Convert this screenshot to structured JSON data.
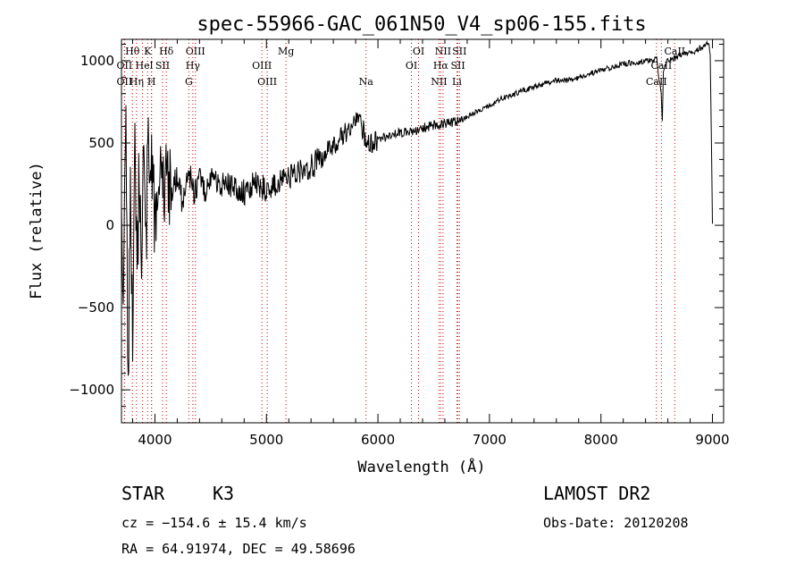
{
  "chart_data": {
    "type": "line",
    "title": "spec-55966-GAC_061N50_V4_sp06-155.fits",
    "xlabel": "Wavelength (Å)",
    "ylabel": "Flux (relative)",
    "xlim": [
      3700,
      9100
    ],
    "ylim": [
      -1200,
      1130
    ],
    "xticks": [
      4000,
      5000,
      6000,
      7000,
      8000,
      9000
    ],
    "xtick_labels": [
      "4000",
      "5000",
      "6000",
      "7000",
      "8000",
      "9000"
    ],
    "yticks": [
      -1000,
      -500,
      0,
      500,
      1000
    ],
    "ytick_labels": [
      "−1000",
      "−500",
      "0",
      "500",
      "1000"
    ],
    "grid": false,
    "legend": "none",
    "series": [
      {
        "x": [
          3700,
          3720,
          3740,
          3760,
          3780,
          3800,
          3820,
          3840,
          3860,
          3880,
          3900,
          3920,
          3940,
          3960,
          3980,
          4000,
          4030,
          4060,
          4100,
          4150,
          4200,
          4250,
          4300,
          4350,
          4400,
          4450,
          4500,
          4600,
          4700,
          4800,
          4900,
          5000,
          5100,
          5200,
          5300,
          5400,
          5500,
          5600,
          5700,
          5800,
          5850,
          5900,
          5950,
          6000,
          6100,
          6200,
          6300,
          6400,
          6500,
          6600,
          6700,
          6800,
          6900,
          7000,
          7100,
          7200,
          7300,
          7400,
          7500,
          7600,
          7700,
          7800,
          7900,
          8000,
          8100,
          8200,
          8300,
          8400,
          8500,
          8540,
          8550,
          8560,
          8600,
          8650,
          8700,
          8800,
          8850,
          8900,
          8940,
          8960,
          8980,
          9000
        ],
        "y": [
          0,
          -300,
          500,
          -950,
          200,
          -600,
          600,
          -400,
          400,
          -500,
          700,
          -200,
          650,
          100,
          500,
          -50,
          450,
          150,
          350,
          200,
          300,
          120,
          350,
          180,
          300,
          200,
          280,
          250,
          230,
          200,
          260,
          220,
          250,
          300,
          330,
          350,
          420,
          470,
          560,
          620,
          600,
          520,
          480,
          520,
          540,
          560,
          570,
          590,
          610,
          620,
          630,
          660,
          700,
          730,
          770,
          790,
          820,
          840,
          860,
          880,
          880,
          900,
          920,
          940,
          960,
          980,
          990,
          1000,
          1010,
          800,
          650,
          950,
          1000,
          1010,
          1030,
          1050,
          1060,
          1080,
          1100,
          1110,
          1050,
          10
        ]
      }
    ],
    "spectral_lines": [
      {
        "label": "Hθ",
        "x": 3798,
        "row": 0
      },
      {
        "label": "K",
        "x": 3934,
        "row": 0
      },
      {
        "label": "Hδ",
        "x": 4102,
        "row": 0
      },
      {
        "label": "OIII",
        "x": 4363,
        "row": 0
      },
      {
        "label": "Mg",
        "x": 5175,
        "row": 0
      },
      {
        "label": "OI",
        "x": 6364,
        "row": 0
      },
      {
        "label": "NII",
        "x": 6584,
        "row": 0
      },
      {
        "label": "SII",
        "x": 6731,
        "row": 0
      },
      {
        "label": "CaII",
        "x": 8662,
        "row": 0
      },
      {
        "label": "OII",
        "x": 3727,
        "row": 1
      },
      {
        "label": "He",
        "x": 3889,
        "row": 1
      },
      {
        "label": "I",
        "x": 3969,
        "row": 1
      },
      {
        "label": "SII",
        "x": 4068,
        "row": 1
      },
      {
        "label": "Hγ",
        "x": 4340,
        "row": 1
      },
      {
        "label": "OIII",
        "x": 4959,
        "row": 1
      },
      {
        "label": "OI",
        "x": 6300,
        "row": 1
      },
      {
        "label": "Hα",
        "x": 6563,
        "row": 1
      },
      {
        "label": "SII",
        "x": 6717,
        "row": 1
      },
      {
        "label": "CaII",
        "x": 8542,
        "row": 1
      },
      {
        "label": "OII",
        "x": 3727,
        "row": 2
      },
      {
        "label": "Hη",
        "x": 3835,
        "row": 2
      },
      {
        "label": "H",
        "x": 3970,
        "row": 2
      },
      {
        "label": "G",
        "x": 4304,
        "row": 2
      },
      {
        "label": "OIII",
        "x": 5007,
        "row": 2
      },
      {
        "label": "Na",
        "x": 5893,
        "row": 2
      },
      {
        "label": "NII",
        "x": 6548,
        "row": 2
      },
      {
        "label": "Li",
        "x": 6708,
        "row": 2
      },
      {
        "label": "CaII",
        "x": 8498,
        "row": 2
      }
    ]
  },
  "info": {
    "class": "STAR",
    "subclass": "K3",
    "survey": "LAMOST DR2",
    "cz": "cz = −154.6 ± 15.4 km/s",
    "obs_date": "Obs-Date: 20120208",
    "coords": "RA =  64.91974, DEC =  49.58696"
  },
  "colors": {
    "axis": "#000000",
    "spectrum": "#000000",
    "line_markers": "#cc0000"
  }
}
